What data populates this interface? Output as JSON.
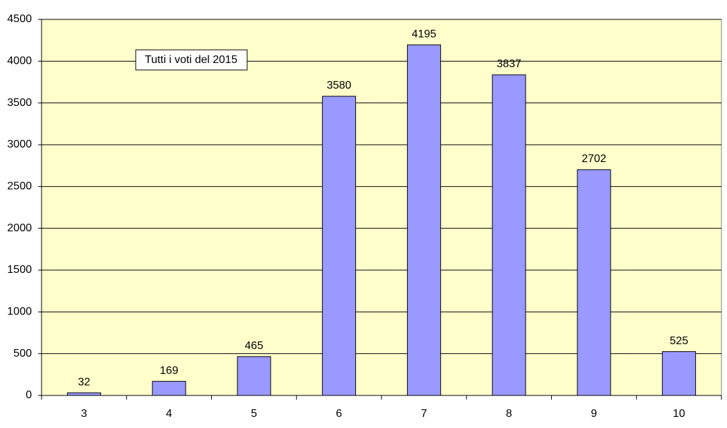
{
  "chart_data": {
    "type": "bar",
    "annotation": "Tutti i voti del 2015",
    "categories": [
      "3",
      "4",
      "5",
      "6",
      "7",
      "8",
      "9",
      "10"
    ],
    "values": [
      32,
      169,
      465,
      3580,
      4195,
      3837,
      2702,
      525
    ],
    "color": "#9999ff",
    "background": "#ffffcc",
    "ylim": [
      0,
      4500
    ],
    "yticks": [
      0,
      500,
      1000,
      1500,
      2000,
      2500,
      3000,
      3500,
      4000,
      4500
    ],
    "grid": true,
    "data_labels": true
  }
}
